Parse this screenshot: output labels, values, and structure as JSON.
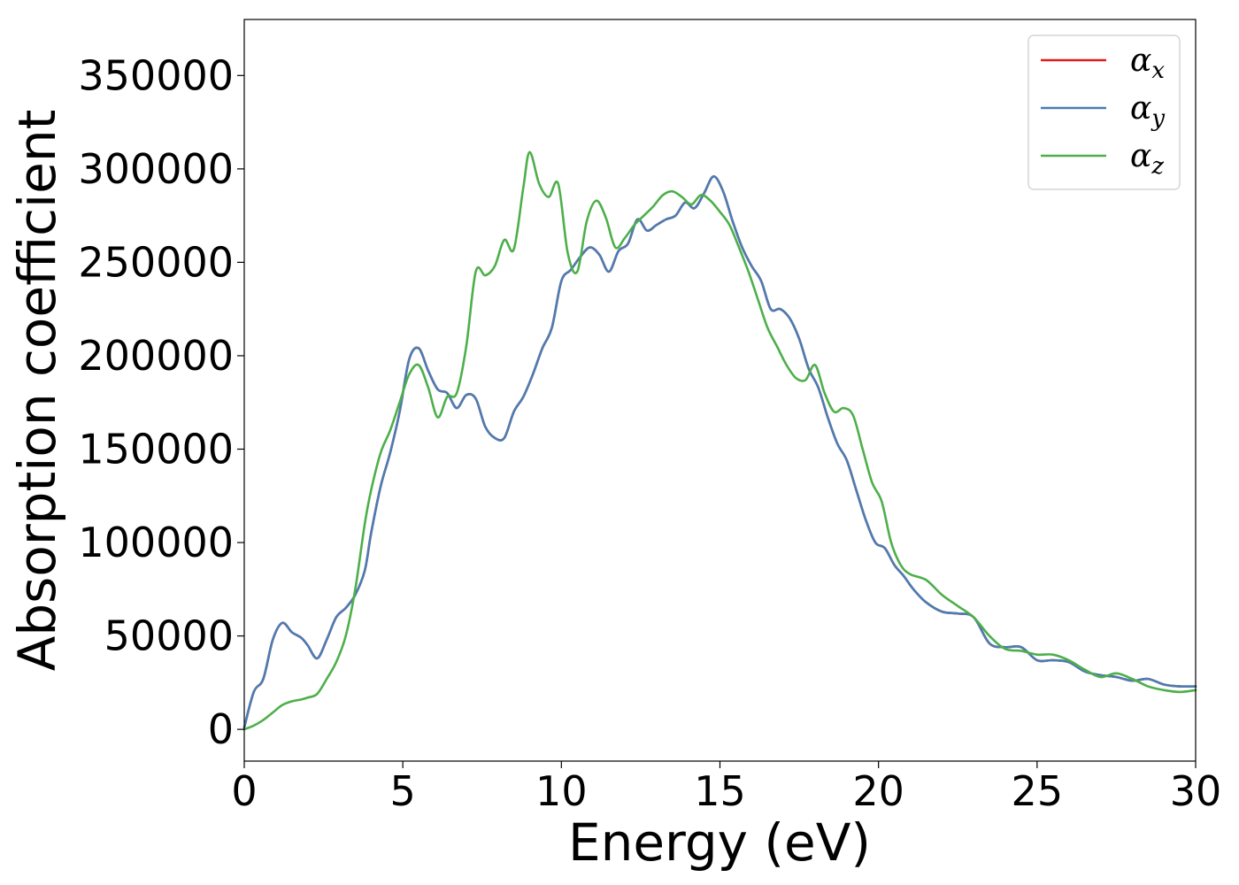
{
  "chart_data": {
    "type": "line",
    "xlabel": "Energy (eV)",
    "ylabel": "Absorption coefficient",
    "xlim": [
      0,
      30
    ],
    "ylim": [
      -17000,
      380000
    ],
    "xticks": [
      0,
      5,
      10,
      15,
      20,
      25,
      30
    ],
    "xtick_labels": [
      "0",
      "5",
      "10",
      "15",
      "20",
      "25",
      "30"
    ],
    "yticks": [
      0,
      50000,
      100000,
      150000,
      200000,
      250000,
      300000,
      350000
    ],
    "ytick_labels": [
      "0",
      "50000",
      "100000",
      "150000",
      "200000",
      "250000",
      "300000",
      "350000"
    ],
    "grid": false,
    "legend_position": "top-right",
    "series": [
      {
        "name": "αx",
        "legend_symbol": "α",
        "legend_subscript": "x",
        "color": "#e41a1c",
        "x": [
          0,
          0.3,
          0.6,
          0.9,
          1.2,
          1.5,
          1.8,
          2.0,
          2.3,
          2.6,
          2.9,
          3.2,
          3.5,
          3.8,
          4.0,
          4.3,
          4.6,
          4.9,
          5.2,
          5.5,
          5.8,
          6.1,
          6.4,
          6.7,
          7.0,
          7.3,
          7.6,
          7.9,
          8.2,
          8.5,
          8.8,
          9.1,
          9.4,
          9.7,
          10.0,
          10.3,
          10.6,
          10.9,
          11.2,
          11.5,
          11.8,
          12.1,
          12.4,
          12.7,
          13.0,
          13.3,
          13.6,
          13.9,
          14.2,
          14.5,
          14.8,
          15.1,
          15.4,
          15.7,
          16.0,
          16.3,
          16.6,
          16.9,
          17.2,
          17.5,
          17.8,
          18.1,
          18.4,
          18.7,
          19.0,
          19.3,
          19.6,
          19.9,
          20.2,
          20.5,
          20.8,
          21.1,
          21.5,
          22.0,
          22.5,
          23.0,
          23.5,
          24.0,
          24.5,
          25.0,
          25.5,
          26.0,
          26.5,
          27.0,
          27.5,
          28.0,
          28.5,
          29.0,
          29.5,
          30.0
        ],
        "y": [
          1000,
          20000,
          27000,
          48000,
          57000,
          52000,
          49000,
          45000,
          38000,
          48000,
          60000,
          65000,
          72000,
          85000,
          105000,
          130000,
          148000,
          170000,
          198000,
          204000,
          192000,
          182000,
          180000,
          172000,
          179000,
          177000,
          162000,
          156000,
          156000,
          170000,
          178000,
          190000,
          204000,
          215000,
          240000,
          246000,
          253000,
          258000,
          254000,
          245000,
          256000,
          260000,
          273000,
          267000,
          270000,
          273000,
          275000,
          282000,
          279000,
          287000,
          296000,
          288000,
          272000,
          258000,
          248000,
          240000,
          225000,
          225000,
          220000,
          209000,
          193000,
          183000,
          167000,
          153000,
          144000,
          128000,
          112000,
          100000,
          97000,
          88000,
          82000,
          75000,
          68000,
          63000,
          62000,
          60000,
          46000,
          44000,
          44000,
          37000,
          37000,
          36000,
          31000,
          29000,
          28000,
          26000,
          27000,
          24000,
          23000,
          23000
        ]
      },
      {
        "name": "αy",
        "legend_symbol": "α",
        "legend_subscript": "y",
        "color": "#4a7db3",
        "x": [
          0,
          0.3,
          0.6,
          0.9,
          1.2,
          1.5,
          1.8,
          2.0,
          2.3,
          2.6,
          2.9,
          3.2,
          3.5,
          3.8,
          4.0,
          4.3,
          4.6,
          4.9,
          5.2,
          5.5,
          5.8,
          6.1,
          6.4,
          6.7,
          7.0,
          7.3,
          7.6,
          7.9,
          8.2,
          8.5,
          8.8,
          9.1,
          9.4,
          9.7,
          10.0,
          10.3,
          10.6,
          10.9,
          11.2,
          11.5,
          11.8,
          12.1,
          12.4,
          12.7,
          13.0,
          13.3,
          13.6,
          13.9,
          14.2,
          14.5,
          14.8,
          15.1,
          15.4,
          15.7,
          16.0,
          16.3,
          16.6,
          16.9,
          17.2,
          17.5,
          17.8,
          18.1,
          18.4,
          18.7,
          19.0,
          19.3,
          19.6,
          19.9,
          20.2,
          20.5,
          20.8,
          21.1,
          21.5,
          22.0,
          22.5,
          23.0,
          23.5,
          24.0,
          24.5,
          25.0,
          25.5,
          26.0,
          26.5,
          27.0,
          27.5,
          28.0,
          28.5,
          29.0,
          29.5,
          30.0
        ],
        "y": [
          1000,
          20000,
          27000,
          48000,
          57000,
          52000,
          49000,
          45000,
          38000,
          48000,
          60000,
          65000,
          72000,
          85000,
          105000,
          130000,
          148000,
          170000,
          198000,
          204000,
          192000,
          182000,
          180000,
          172000,
          179000,
          177000,
          162000,
          156000,
          156000,
          170000,
          178000,
          190000,
          204000,
          215000,
          240000,
          246000,
          253000,
          258000,
          254000,
          245000,
          256000,
          260000,
          273000,
          267000,
          270000,
          273000,
          275000,
          282000,
          279000,
          287000,
          296000,
          288000,
          272000,
          258000,
          248000,
          240000,
          225000,
          225000,
          220000,
          209000,
          193000,
          183000,
          167000,
          153000,
          144000,
          128000,
          112000,
          100000,
          97000,
          88000,
          82000,
          75000,
          68000,
          63000,
          62000,
          60000,
          46000,
          44000,
          44000,
          37000,
          37000,
          36000,
          31000,
          29000,
          28000,
          26000,
          27000,
          24000,
          23000,
          23000
        ]
      },
      {
        "name": "αz",
        "legend_symbol": "α",
        "legend_subscript": "z",
        "color": "#4daf4a",
        "x": [
          0,
          0.3,
          0.6,
          0.9,
          1.2,
          1.5,
          1.8,
          2.0,
          2.3,
          2.6,
          2.9,
          3.2,
          3.5,
          3.8,
          4.0,
          4.3,
          4.6,
          4.9,
          5.2,
          5.5,
          5.8,
          6.1,
          6.4,
          6.7,
          7.0,
          7.3,
          7.6,
          7.9,
          8.2,
          8.5,
          8.8,
          9.0,
          9.3,
          9.6,
          9.9,
          10.2,
          10.5,
          10.8,
          11.1,
          11.4,
          11.7,
          12.0,
          12.3,
          12.6,
          12.9,
          13.2,
          13.5,
          13.8,
          14.1,
          14.4,
          14.7,
          15.0,
          15.3,
          15.6,
          15.9,
          16.2,
          16.5,
          16.8,
          17.1,
          17.4,
          17.7,
          18.0,
          18.3,
          18.6,
          18.9,
          19.2,
          19.5,
          19.8,
          20.1,
          20.4,
          20.7,
          21.0,
          21.5,
          22.0,
          22.5,
          23.0,
          23.5,
          24.0,
          24.5,
          25.0,
          25.5,
          26.0,
          26.5,
          27.0,
          27.5,
          28.0,
          28.5,
          29.0,
          29.5,
          30.0
        ],
        "y": [
          0,
          2000,
          5000,
          9000,
          13000,
          15000,
          16000,
          17000,
          19000,
          27000,
          36000,
          50000,
          75000,
          110000,
          128000,
          148000,
          160000,
          175000,
          190000,
          195000,
          183000,
          167000,
          178000,
          180000,
          205000,
          245000,
          243000,
          248000,
          262000,
          257000,
          290000,
          309000,
          292000,
          285000,
          292000,
          255000,
          245000,
          272000,
          283000,
          274000,
          258000,
          263000,
          270000,
          275000,
          280000,
          286000,
          288000,
          285000,
          281000,
          286000,
          283000,
          277000,
          270000,
          258000,
          245000,
          230000,
          215000,
          205000,
          195000,
          188000,
          187000,
          195000,
          180000,
          170000,
          172000,
          168000,
          150000,
          132000,
          122000,
          100000,
          88000,
          83000,
          80000,
          72000,
          66000,
          60000,
          50000,
          43000,
          42000,
          40000,
          40000,
          37000,
          32000,
          28000,
          30000,
          27000,
          23000,
          21000,
          20000,
          21000
        ]
      }
    ]
  }
}
